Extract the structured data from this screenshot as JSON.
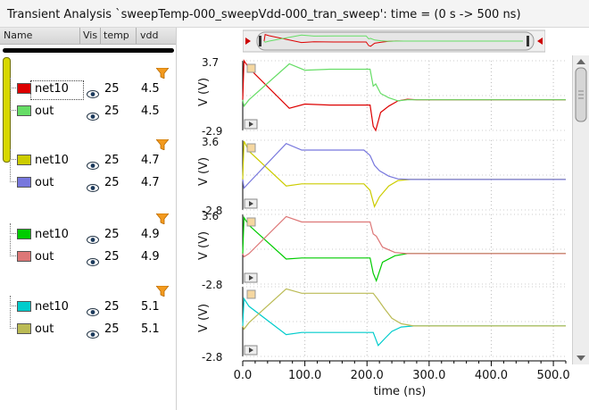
{
  "window": {
    "title": "Transient Analysis `sweepTemp-000_sweepVdd-000_tran_sweep': time = (0 s -> 500 ns)"
  },
  "columns": [
    "Name",
    "Vis",
    "temp",
    "vdd"
  ],
  "groups": [
    {
      "signals": [
        {
          "name": "net10",
          "color": "#dd0000",
          "temp": "25",
          "vdd": "4.5"
        },
        {
          "name": "out",
          "color": "#66dd66",
          "temp": "25",
          "vdd": "4.5"
        }
      ]
    },
    {
      "signals": [
        {
          "name": "net10",
          "color": "#cccc00",
          "temp": "25",
          "vdd": "4.7"
        },
        {
          "name": "out",
          "color": "#7777dd",
          "temp": "25",
          "vdd": "4.7"
        }
      ]
    },
    {
      "signals": [
        {
          "name": "net10",
          "color": "#00cc00",
          "temp": "25",
          "vdd": "4.9"
        },
        {
          "name": "out",
          "color": "#dd7777",
          "temp": "25",
          "vdd": "4.9"
        }
      ]
    },
    {
      "signals": [
        {
          "name": "net10",
          "color": "#00cccc",
          "temp": "25",
          "vdd": "5.1"
        },
        {
          "name": "out",
          "color": "#bbbb55",
          "temp": "25",
          "vdd": "5.1"
        }
      ]
    }
  ],
  "panels": [
    {
      "ylabel": "V (V)",
      "ymax_label": "3.7",
      "ymin_label": "-2.9"
    },
    {
      "ylabel": "V (V)",
      "ymax_label": "3.6",
      "ymin_label": "-2.8"
    },
    {
      "ylabel": "V (V)",
      "ymax_label": "3.6",
      "ymin_label": "-2.8"
    },
    {
      "ylabel": "V (V)",
      "ymax_label": "",
      "ymin_label": "-2.8"
    }
  ],
  "xaxis": {
    "label": "time (ns)",
    "ticks": [
      "0.0",
      "100.0",
      "200.0",
      "300.0",
      "400.0",
      "500.0"
    ]
  },
  "icons": {
    "filter": "filter-icon",
    "eye": "eye-icon",
    "zoom": "zoom-icon",
    "play": "play-icon",
    "scroll_left": "scroll-left-arrow-icon",
    "scroll_right": "scroll-right-arrow-icon"
  },
  "chart_data": {
    "type": "line",
    "xlabel": "time (ns)",
    "xlim": [
      0,
      520
    ],
    "charts": [
      {
        "ylabel": "V (V)",
        "ylim": [
          -2.9,
          3.7
        ],
        "series": [
          {
            "name": "net10",
            "color": "#dd0000",
            "x": [
              0,
              2,
              10,
              75,
              100,
              140,
              205,
              210,
              214,
              222,
              235,
              250,
              265,
              280,
              520
            ],
            "y": [
              0.0,
              3.7,
              3.0,
              -0.8,
              -0.4,
              -0.5,
              -0.5,
              -2.5,
              -2.9,
              -1.2,
              -0.6,
              -0.1,
              0.05,
              0.0,
              0.0
            ]
          },
          {
            "name": "out",
            "color": "#66dd66",
            "x": [
              0,
              2,
              10,
              75,
              100,
              140,
              205,
              210,
              214,
              222,
              235,
              250,
              265,
              280,
              520
            ],
            "y": [
              0.0,
              -0.6,
              0.0,
              3.4,
              2.8,
              2.9,
              2.9,
              1.3,
              1.5,
              0.6,
              0.2,
              -0.1,
              0.0,
              0.0,
              0.0
            ]
          }
        ]
      },
      {
        "ylabel": "V (V)",
        "ylim": [
          -2.8,
          3.6
        ],
        "series": [
          {
            "name": "net10",
            "color": "#cccc00",
            "x": [
              0,
              2,
              10,
              70,
              95,
              140,
              195,
              205,
              212,
              220,
              235,
              250,
              270,
              520
            ],
            "y": [
              0.0,
              3.5,
              2.6,
              -0.6,
              -0.4,
              -0.4,
              -0.4,
              -1.0,
              -2.5,
              -1.6,
              -0.6,
              -0.1,
              0.0,
              0.0
            ]
          },
          {
            "name": "out",
            "color": "#7777dd",
            "x": [
              0,
              2,
              10,
              70,
              95,
              140,
              195,
              205,
              212,
              220,
              235,
              250,
              270,
              520
            ],
            "y": [
              0.0,
              -0.8,
              -0.3,
              3.3,
              2.7,
              2.7,
              2.7,
              2.2,
              1.3,
              0.8,
              0.3,
              0.05,
              0.0,
              0.0
            ]
          }
        ]
      },
      {
        "ylabel": "V (V)",
        "ylim": [
          -2.8,
          3.6
        ],
        "series": [
          {
            "name": "net10",
            "color": "#00cc00",
            "x": [
              0,
              2,
              10,
              70,
              95,
              140,
              205,
              210,
              215,
              225,
              245,
              265,
              520
            ],
            "y": [
              0.0,
              3.3,
              2.6,
              -0.5,
              -0.4,
              -0.4,
              -0.4,
              -1.8,
              -2.5,
              -0.8,
              -0.2,
              0.0,
              0.0
            ]
          },
          {
            "name": "out",
            "color": "#dd7777",
            "x": [
              0,
              2,
              10,
              70,
              95,
              140,
              205,
              210,
              215,
              225,
              245,
              265,
              520
            ],
            "y": [
              0.0,
              -0.3,
              0.0,
              3.4,
              2.9,
              2.9,
              2.9,
              1.8,
              1.6,
              0.6,
              0.1,
              0.0,
              0.0
            ]
          }
        ]
      },
      {
        "ylabel": "V (V)",
        "ylim": [
          -2.8,
          3.6
        ],
        "series": [
          {
            "name": "net10",
            "color": "#00cccc",
            "x": [
              0,
              2,
              10,
              70,
              95,
              140,
              210,
              218,
              228,
              240,
              255,
              275,
              520
            ],
            "y": [
              0.0,
              2.5,
              1.8,
              -0.8,
              -0.6,
              -0.6,
              -0.6,
              -1.8,
              -1.2,
              -0.5,
              -0.1,
              0.0,
              0.0
            ]
          },
          {
            "name": "out",
            "color": "#bbbb55",
            "x": [
              0,
              2,
              10,
              70,
              95,
              140,
              210,
              218,
              228,
              240,
              255,
              275,
              520
            ],
            "y": [
              0.0,
              -0.3,
              0.3,
              3.4,
              3.0,
              3.0,
              3.0,
              2.4,
              1.6,
              0.7,
              0.2,
              0.0,
              0.0
            ]
          }
        ]
      }
    ]
  }
}
